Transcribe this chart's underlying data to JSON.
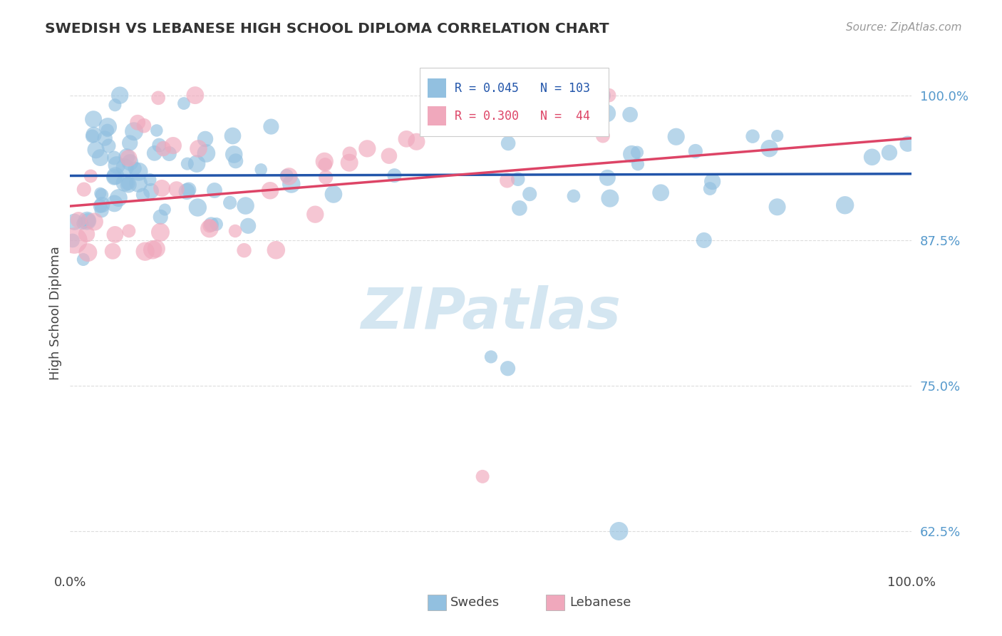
{
  "title": "SWEDISH VS LEBANESE HIGH SCHOOL DIPLOMA CORRELATION CHART",
  "source": "Source: ZipAtlas.com",
  "ylabel": "High School Diploma",
  "yticks": [
    0.625,
    0.75,
    0.875,
    1.0
  ],
  "ytick_labels": [
    "62.5%",
    "75.0%",
    "87.5%",
    "100.0%"
  ],
  "xlim": [
    0.0,
    1.0
  ],
  "ylim": [
    0.595,
    1.03
  ],
  "legend_swedes_label": "Swedes",
  "legend_lebanese_label": "Lebanese",
  "R_swedes": 0.045,
  "N_swedes": 103,
  "R_lebanese": 0.3,
  "N_lebanese": 44,
  "blue_color": "#92c0e0",
  "pink_color": "#f0a8bc",
  "blue_line_color": "#2255aa",
  "pink_line_color": "#dd4466",
  "background_color": "#ffffff",
  "grid_color": "#dddddd",
  "title_color": "#333333",
  "source_color": "#999999",
  "tick_color": "#5599cc",
  "label_color": "#444444",
  "watermark_color": "#d0e4f0"
}
